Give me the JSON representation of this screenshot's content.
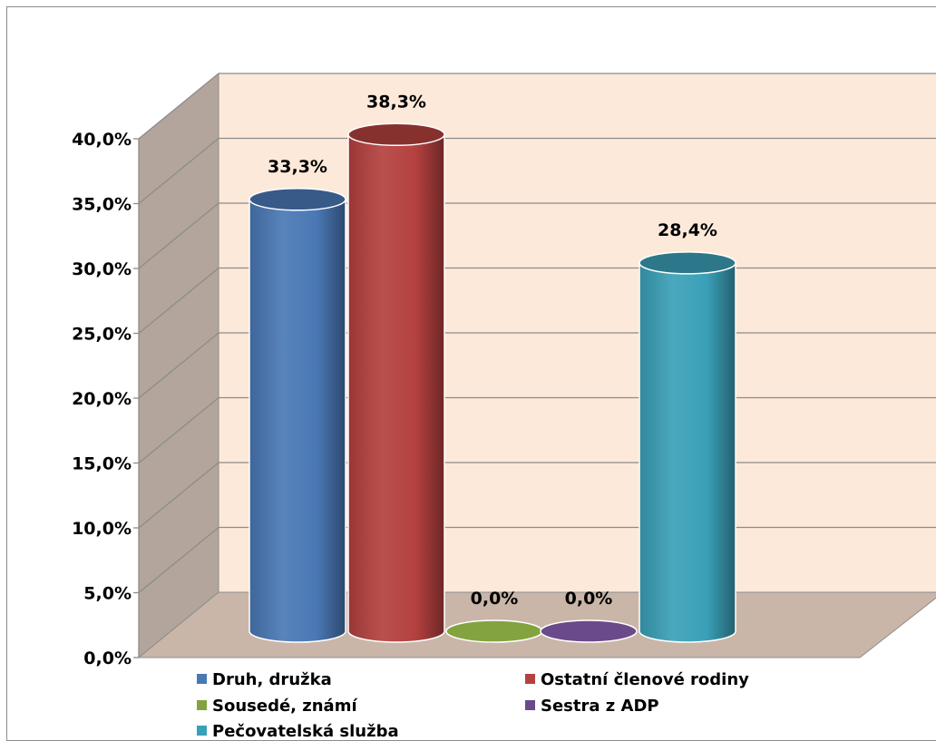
{
  "chart_data": {
    "type": "bar",
    "style": "3d-cylinder",
    "categories": [
      "Druh, družka",
      "Ostatní členové rodiny",
      "Sousedé, známí",
      "Sestra z ADP",
      "Pečovatelská služba"
    ],
    "values": [
      33.3,
      38.3,
      0.0,
      0.0,
      28.4
    ],
    "data_labels": [
      "33,3%",
      "38,3%",
      "0,0%",
      "0,0%",
      "28,4%"
    ],
    "colors": [
      "#4a78b5",
      "#b4413f",
      "#83a340",
      "#6a4a8a",
      "#3aa0b8"
    ],
    "ylim": [
      0,
      40
    ],
    "yticks": [
      0,
      5,
      10,
      15,
      20,
      25,
      30,
      35,
      40
    ],
    "ytick_labels": [
      "0,0%",
      "5,0%",
      "10,0%",
      "15,0%",
      "20,0%",
      "25,0%",
      "30,0%",
      "35,0%",
      "40,0%"
    ],
    "grid": true,
    "legend": {
      "placement": "bottom",
      "entries": [
        "Druh, družka",
        "Ostatní členové rodiny",
        "Sousedé, známí",
        "Sestra z ADP",
        "Pečovatelská služba"
      ]
    },
    "back_wall_color": "#fde9d9",
    "side_wall_color": "#b3a59b",
    "floor_color": "#c9b6a8"
  }
}
